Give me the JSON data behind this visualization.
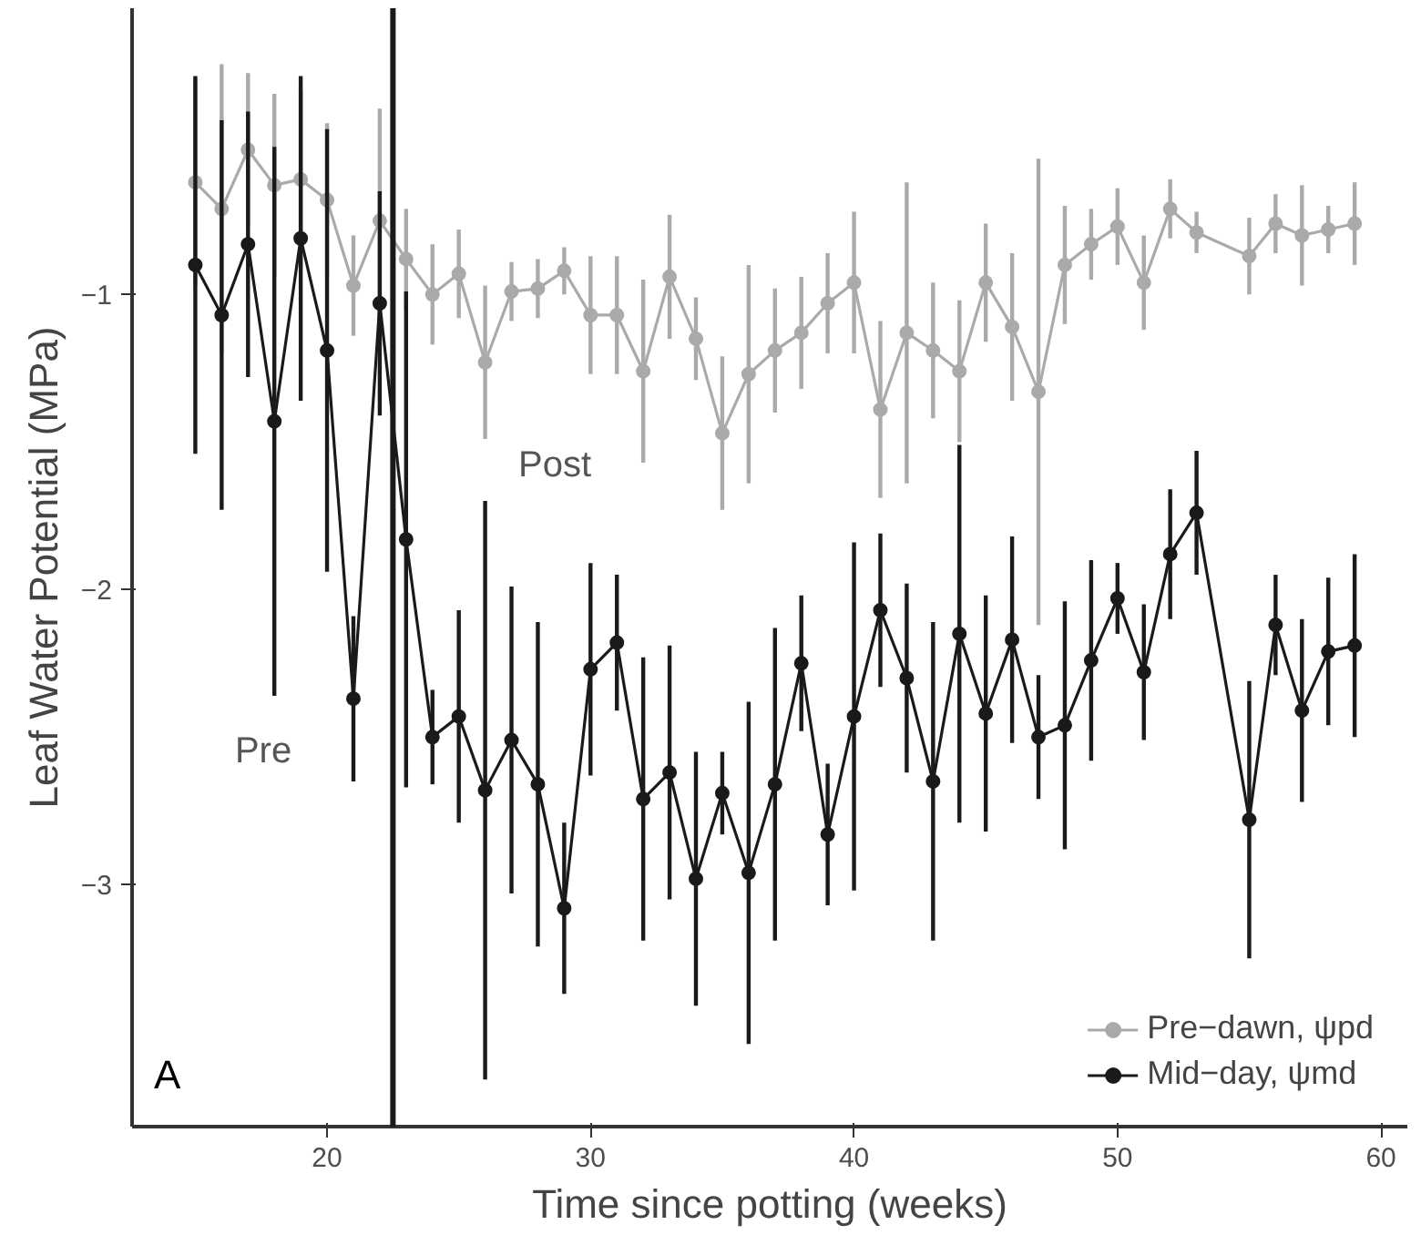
{
  "chart_data": {
    "type": "line",
    "xlabel": "Time since potting (weeks)",
    "ylabel": "Leaf Water Potential (MPa)",
    "xlim": [
      12.6,
      61
    ],
    "ylim": [
      -3.82,
      -0.03
    ],
    "xticks": [
      20,
      30,
      40,
      50,
      60
    ],
    "yticks": [
      {
        "value": -1,
        "label": "−1"
      },
      {
        "value": -2,
        "label": "−2"
      },
      {
        "value": -3,
        "label": "−3"
      }
    ],
    "grid": false,
    "legend": "bottom right",
    "marker": "circle",
    "line_style": "solid",
    "ref_lines": [
      {
        "axis": "x",
        "value": 22.5,
        "color": "#1a1a1a"
      }
    ],
    "annotations": [
      "Pre",
      "Post",
      "A"
    ],
    "series": [
      {
        "name": "Pre−dawn, ψpd",
        "color": "#aaaaaa",
        "x": [
          15,
          16,
          17,
          18,
          19,
          20,
          21,
          22,
          23,
          24,
          25,
          26,
          27,
          28,
          29,
          30,
          31,
          32,
          33,
          34,
          35,
          36,
          37,
          38,
          39,
          40,
          41,
          42,
          43,
          44,
          45,
          46,
          47,
          48,
          49,
          50,
          51,
          52,
          53,
          55,
          56,
          57,
          58,
          59
        ],
        "values": [
          -0.62,
          -0.71,
          -0.51,
          -0.63,
          -0.61,
          -0.68,
          -0.97,
          -0.75,
          -0.88,
          -1.0,
          -0.93,
          -1.23,
          -0.99,
          -0.98,
          -0.92,
          -1.07,
          -1.07,
          -1.26,
          -0.94,
          -1.15,
          -1.47,
          -1.27,
          -1.19,
          -1.13,
          -1.03,
          -0.96,
          -1.39,
          -1.13,
          -1.19,
          -1.26,
          -0.96,
          -1.11,
          -1.33,
          -0.9,
          -0.83,
          -0.77,
          -0.96,
          -0.71,
          -0.79,
          -0.87,
          -0.76,
          -0.8,
          -0.78,
          -0.76
        ],
        "errors": [
          0.35,
          0.49,
          0.26,
          0.31,
          0.3,
          0.26,
          0.17,
          0.38,
          0.17,
          0.17,
          0.15,
          0.26,
          0.1,
          0.1,
          0.08,
          0.2,
          0.2,
          0.31,
          0.21,
          0.14,
          0.26,
          0.37,
          0.21,
          0.19,
          0.17,
          0.24,
          0.3,
          0.51,
          0.23,
          0.24,
          0.2,
          0.25,
          0.79,
          0.2,
          0.12,
          0.13,
          0.16,
          0.1,
          0.07,
          0.13,
          0.1,
          0.17,
          0.08,
          0.14
        ]
      },
      {
        "name": "Mid−day, ψmd",
        "color": "#1a1a1a",
        "x": [
          15,
          16,
          17,
          18,
          19,
          20,
          21,
          22,
          23,
          24,
          25,
          26,
          27,
          28,
          29,
          30,
          31,
          32,
          33,
          34,
          35,
          36,
          37,
          38,
          39,
          40,
          41,
          42,
          43,
          44,
          45,
          46,
          47,
          48,
          49,
          50,
          51,
          52,
          53,
          55,
          56,
          57,
          58,
          59
        ],
        "values": [
          -0.9,
          -1.07,
          -0.83,
          -1.43,
          -0.81,
          -1.19,
          -2.37,
          -1.03,
          -1.83,
          -2.5,
          -2.43,
          -2.68,
          -2.51,
          -2.66,
          -3.08,
          -2.27,
          -2.18,
          -2.71,
          -2.62,
          -2.98,
          -2.69,
          -2.96,
          -2.66,
          -2.25,
          -2.83,
          -2.43,
          -2.07,
          -2.3,
          -2.65,
          -2.15,
          -2.42,
          -2.17,
          -2.5,
          -2.46,
          -2.24,
          -2.03,
          -2.28,
          -1.88,
          -1.74,
          -2.78,
          -2.12,
          -2.41,
          -2.21,
          -2.19
        ],
        "errors": [
          0.64,
          0.66,
          0.45,
          0.93,
          0.55,
          0.75,
          0.28,
          0.38,
          0.84,
          0.16,
          0.36,
          0.98,
          0.52,
          0.55,
          0.29,
          0.36,
          0.23,
          0.48,
          0.43,
          0.43,
          0.14,
          0.58,
          0.53,
          0.23,
          0.24,
          0.59,
          0.26,
          0.32,
          0.54,
          0.64,
          0.4,
          0.35,
          0.21,
          0.42,
          0.34,
          0.12,
          0.23,
          0.22,
          0.21,
          0.47,
          0.17,
          0.31,
          0.25,
          0.31
        ]
      }
    ]
  }
}
